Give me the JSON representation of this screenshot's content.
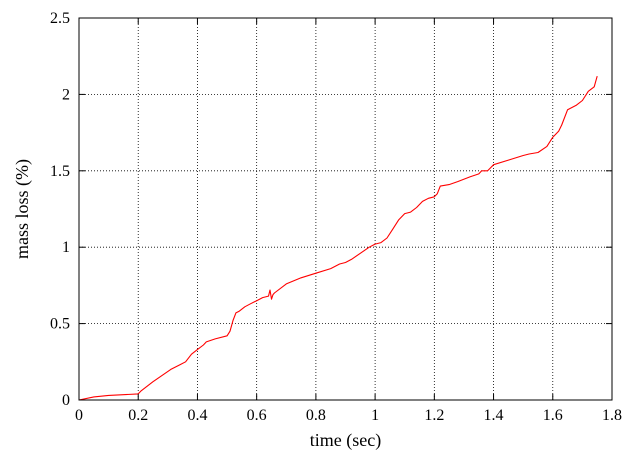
{
  "chart_data": {
    "type": "line",
    "title": "",
    "xlabel": "time (sec)",
    "ylabel": "mass loss (%)",
    "xlim": [
      0,
      1.8
    ],
    "ylim": [
      0,
      2.5
    ],
    "grid": true,
    "legend": "none",
    "x_ticks": [
      "0",
      "0.2",
      "0.4",
      "0.6",
      "0.8",
      "1",
      "1.2",
      "1.4",
      "1.6",
      "1.8"
    ],
    "y_ticks": [
      "0",
      "0.5",
      "1",
      "1.5",
      "2",
      "2.5"
    ],
    "series": [
      {
        "color": "#ff0000",
        "x": [
          0.0,
          0.05,
          0.1,
          0.15,
          0.2,
          0.21,
          0.25,
          0.28,
          0.31,
          0.34,
          0.36,
          0.38,
          0.4,
          0.42,
          0.43,
          0.46,
          0.5,
          0.51,
          0.52,
          0.53,
          0.54,
          0.56,
          0.58,
          0.6,
          0.62,
          0.64,
          0.645,
          0.65,
          0.655,
          0.66,
          0.7,
          0.75,
          0.8,
          0.85,
          0.88,
          0.9,
          0.92,
          0.95,
          0.98,
          1.0,
          1.02,
          1.04,
          1.06,
          1.08,
          1.1,
          1.12,
          1.14,
          1.16,
          1.18,
          1.2,
          1.21,
          1.22,
          1.25,
          1.28,
          1.32,
          1.35,
          1.36,
          1.38,
          1.39,
          1.4,
          1.45,
          1.5,
          1.52,
          1.55,
          1.58,
          1.6,
          1.62,
          1.63,
          1.65,
          1.68,
          1.7,
          1.72,
          1.74,
          1.75
        ],
        "y": [
          0.0,
          0.02,
          0.03,
          0.035,
          0.04,
          0.06,
          0.12,
          0.16,
          0.2,
          0.23,
          0.25,
          0.3,
          0.33,
          0.36,
          0.38,
          0.4,
          0.42,
          0.45,
          0.52,
          0.57,
          0.58,
          0.61,
          0.63,
          0.65,
          0.67,
          0.68,
          0.72,
          0.66,
          0.69,
          0.7,
          0.76,
          0.8,
          0.83,
          0.86,
          0.89,
          0.9,
          0.92,
          0.96,
          1.0,
          1.02,
          1.03,
          1.06,
          1.12,
          1.18,
          1.22,
          1.23,
          1.26,
          1.3,
          1.32,
          1.33,
          1.35,
          1.4,
          1.41,
          1.43,
          1.46,
          1.48,
          1.5,
          1.5,
          1.52,
          1.54,
          1.57,
          1.6,
          1.61,
          1.62,
          1.66,
          1.72,
          1.76,
          1.8,
          1.9,
          1.93,
          1.96,
          2.02,
          2.05,
          2.12
        ]
      }
    ]
  }
}
